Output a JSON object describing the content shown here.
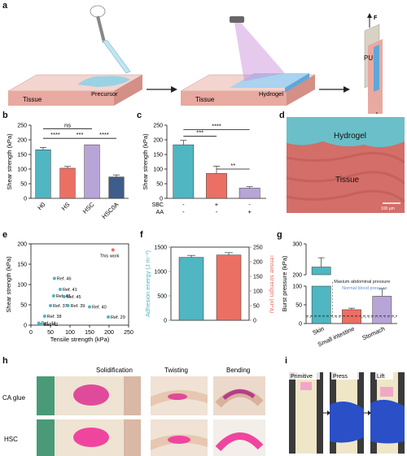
{
  "panels": {
    "a": "a",
    "b": "b",
    "c": "c",
    "d": "d",
    "e": "e",
    "f": "f",
    "g": "g",
    "h": "h",
    "i": "i"
  },
  "panel_a": {
    "tissue_label": "Tissue",
    "precursor_label": "Precursor",
    "hydrogel_label": "Hydrogel",
    "pu_label": "PU",
    "force_label": "F"
  },
  "panel_d": {
    "hydrogel_label": "Hydrogel",
    "tissue_label": "Tissue",
    "scale_bar": "100 μm"
  },
  "panel_h": {
    "row_labels": [
      "CA glue",
      "HSC"
    ],
    "col_labels": [
      "Solidification",
      "Twisting",
      "Bending"
    ]
  },
  "panel_i": {
    "col_labels": [
      "Primitive",
      "Press",
      "Lift"
    ]
  },
  "chart_data": [
    {
      "id": "b",
      "type": "bar",
      "categories": [
        "H0",
        "HS",
        "HSC",
        "HSC0A"
      ],
      "values": [
        166,
        103,
        183,
        73
      ],
      "errors": [
        8,
        6,
        0,
        7
      ],
      "colors": [
        "#4fb6c2",
        "#ec6f64",
        "#b7a5d8",
        "#3f5d8a"
      ],
      "ylabel": "Shear strength (kPa)",
      "ylim": [
        0,
        250
      ],
      "yticks": [
        0,
        50,
        100,
        150,
        200,
        250
      ],
      "significance": [
        {
          "from": 0,
          "to": 2,
          "label": "ns"
        },
        {
          "from": 0,
          "to": 1,
          "label": "****"
        },
        {
          "from": 1,
          "to": 2,
          "label": "***"
        },
        {
          "from": 2,
          "to": 3,
          "label": "****"
        }
      ]
    },
    {
      "id": "c",
      "type": "bar",
      "categories": [
        "1",
        "2",
        "3"
      ],
      "values": [
        183,
        85,
        35
      ],
      "errors": [
        15,
        25,
        5
      ],
      "colors": [
        "#4fb6c2",
        "#ec6f64",
        "#b7a5d8"
      ],
      "ylabel": "Shear strength (kPa)",
      "ylim": [
        0,
        250
      ],
      "yticks": [
        0,
        50,
        100,
        150,
        200,
        250
      ],
      "row_labels": [
        "SBC",
        "AA"
      ],
      "row_values": [
        [
          "-",
          "+",
          "-"
        ],
        [
          "-",
          "-",
          "+"
        ]
      ],
      "significance": [
        {
          "from": 0,
          "to": 2,
          "label": "****"
        },
        {
          "from": 0,
          "to": 1,
          "label": "***"
        },
        {
          "from": 1,
          "to": 2,
          "label": "**"
        }
      ]
    },
    {
      "id": "e",
      "type": "scatter",
      "xlabel": "Tensile strength (kPa)",
      "ylabel": "Shear strength (kPa)",
      "xlim": [
        0,
        250
      ],
      "ylim": [
        0,
        200
      ],
      "xticks": [
        0,
        50,
        100,
        150,
        200,
        250
      ],
      "yticks": [
        0,
        50,
        100,
        150,
        200
      ],
      "points": [
        {
          "x": 210,
          "y": 185,
          "label": "This work",
          "highlight": true
        },
        {
          "x": 60,
          "y": 115,
          "label": "Ref. 46"
        },
        {
          "x": 75,
          "y": 88,
          "label": "Ref. 41"
        },
        {
          "x": 58,
          "y": 72,
          "label": "Ref. 43"
        },
        {
          "x": 85,
          "y": 70,
          "label": "Ref. 45"
        },
        {
          "x": 50,
          "y": 48,
          "label": "Ref. 37"
        },
        {
          "x": 95,
          "y": 48,
          "label": "Ref. 39"
        },
        {
          "x": 150,
          "y": 45,
          "label": "Ref. 40"
        },
        {
          "x": 35,
          "y": 22,
          "label": "Ref. 38"
        },
        {
          "x": 198,
          "y": 20,
          "label": "Ref. 29"
        },
        {
          "x": 20,
          "y": 5,
          "label": "Ref. 44"
        },
        {
          "x": 26,
          "y": 2,
          "label": "Ref. 42"
        }
      ]
    },
    {
      "id": "f",
      "type": "bar",
      "categories": [
        "Adhesion energy",
        "Tensile strength"
      ],
      "values": [
        1290,
        223
      ],
      "errors": [
        40,
        8
      ],
      "colors": [
        "#4fb6c2",
        "#ec6f64"
      ],
      "ylabel_left": "Adhesion energy (J m⁻²)",
      "ylabel_right": "Tensile strength (kPa)",
      "ylim_left": [
        0,
        1500
      ],
      "ylim_right": [
        0,
        250
      ],
      "yticks_left": [
        0,
        500,
        1000,
        1500
      ],
      "yticks_right": [
        0,
        50,
        100,
        150,
        200,
        250
      ]
    },
    {
      "id": "g",
      "type": "bar",
      "categories": [
        "Skin",
        "Small intestine",
        "Stomach"
      ],
      "values": [
        225,
        37,
        73
      ],
      "errors": [
        30,
        4,
        20
      ],
      "colors": [
        "#4fb6c2",
        "#ec6f64",
        "#b7a5d8"
      ],
      "ylabel": "Burst pressure (kPa)",
      "yticks_lower": [
        0,
        50,
        100
      ],
      "yticks_upper": [
        200,
        300
      ],
      "reference_lines": [
        {
          "value": 20,
          "label": "Maxium abdominal pressure",
          "color": "#222222"
        },
        {
          "value": 16,
          "label": "Normal blood pressure",
          "color": "#5b8fd6"
        }
      ]
    }
  ]
}
